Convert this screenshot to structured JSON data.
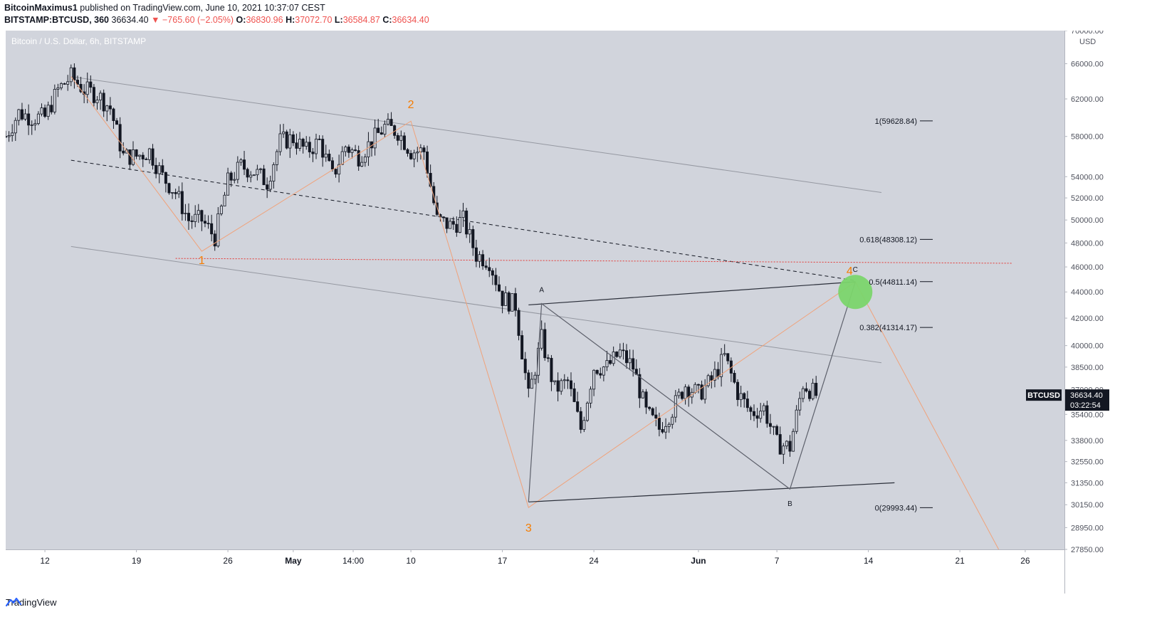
{
  "header": {
    "author": "BitcoinMaximus1",
    "published_text": " published on TradingView.com, June 10, 2021 10:37:07 CEST",
    "symbol": "BITSTAMP:BTCUSD, 360",
    "last": "36634.40",
    "change_arrow": "▼",
    "change": "−765.60 (−2.05%)",
    "o_label": "O:",
    "o": "36830.96",
    "h_label": "H:",
    "h": "37072.70",
    "l_label": "L:",
    "l": "36584.87",
    "c_label": "C:",
    "c": "36634.40"
  },
  "chart_data": {
    "type": "candlestick",
    "title": "Bitcoin / U.S. Dollar, 6h, BITSTAMP",
    "currency": "USD",
    "y_scale": "log",
    "ylim": [
      27850,
      70000
    ],
    "y_ticks": [
      {
        "value": 70000,
        "label": "70000.00"
      },
      {
        "value": 66000,
        "label": "66000.00"
      },
      {
        "value": 62000,
        "label": "62000.00"
      },
      {
        "value": 58000,
        "label": "58000.00"
      },
      {
        "value": 54000,
        "label": "54000.00"
      },
      {
        "value": 52000,
        "label": "52000.00"
      },
      {
        "value": 50000,
        "label": "50000.00"
      },
      {
        "value": 48000,
        "label": "48000.00"
      },
      {
        "value": 46000,
        "label": "46000.00"
      },
      {
        "value": 44000,
        "label": "44000.00"
      },
      {
        "value": 42000,
        "label": "42000.00"
      },
      {
        "value": 40000,
        "label": "40000.00"
      },
      {
        "value": 38500,
        "label": "38500.00"
      },
      {
        "value": 37000,
        "label": "37000.00"
      },
      {
        "value": 35400,
        "label": "35400.00"
      },
      {
        "value": 33800,
        "label": "33800.00"
      },
      {
        "value": 32550,
        "label": "32550.00"
      },
      {
        "value": 31350,
        "label": "31350.00"
      },
      {
        "value": 30150,
        "label": "30150.00"
      },
      {
        "value": 28950,
        "label": "28950.00"
      },
      {
        "value": 27850,
        "label": "27850.00"
      }
    ],
    "x_range": [
      "2021-04-09",
      "2021-06-29"
    ],
    "x_ticks": [
      {
        "date": "2021-04-12",
        "label": "12"
      },
      {
        "date": "2021-04-19",
        "label": "19"
      },
      {
        "date": "2021-04-26",
        "label": "26"
      },
      {
        "date": "2021-05-01",
        "label": "May",
        "bold": true
      },
      {
        "date": "2021-05-05T14:00",
        "label": "14:00"
      },
      {
        "date": "2021-05-10",
        "label": "10"
      },
      {
        "date": "2021-05-17",
        "label": "17"
      },
      {
        "date": "2021-05-24",
        "label": "24"
      },
      {
        "date": "2021-06-01",
        "label": "Jun",
        "bold": true
      },
      {
        "date": "2021-06-07",
        "label": "7"
      },
      {
        "date": "2021-06-14",
        "label": "14"
      },
      {
        "date": "2021-06-21",
        "label": "21"
      },
      {
        "date": "2021-06-26",
        "label": "26"
      }
    ],
    "price_path": [
      [
        "2021-04-09",
        58000
      ],
      [
        "2021-04-10",
        60500
      ],
      [
        "2021-04-11",
        60000
      ],
      [
        "2021-04-12",
        60000
      ],
      [
        "2021-04-13",
        63000
      ],
      [
        "2021-04-14",
        64500
      ],
      [
        "2021-04-15",
        63000
      ],
      [
        "2021-04-16",
        62500
      ],
      [
        "2021-04-17",
        61000
      ],
      [
        "2021-04-18",
        56000
      ],
      [
        "2021-04-19",
        56000
      ],
      [
        "2021-04-20",
        56500
      ],
      [
        "2021-04-21",
        54000
      ],
      [
        "2021-04-22",
        52500
      ],
      [
        "2021-04-23",
        50000
      ],
      [
        "2021-04-24",
        50000
      ],
      [
        "2021-04-25",
        48500
      ],
      [
        "2021-04-26",
        53500
      ],
      [
        "2021-04-27",
        55000
      ],
      [
        "2021-04-28",
        54500
      ],
      [
        "2021-04-29",
        53500
      ],
      [
        "2021-04-30",
        57500
      ],
      [
        "2021-05-01",
        57800
      ],
      [
        "2021-05-02",
        56500
      ],
      [
        "2021-05-03",
        57500
      ],
      [
        "2021-05-04",
        54000
      ],
      [
        "2021-05-05",
        57000
      ],
      [
        "2021-05-06",
        56000
      ],
      [
        "2021-05-07",
        57500
      ],
      [
        "2021-05-08",
        59000
      ],
      [
        "2021-05-09",
        58500
      ],
      [
        "2021-05-10",
        56500
      ],
      [
        "2021-05-11",
        56500
      ],
      [
        "2021-05-12",
        50000
      ],
      [
        "2021-05-13",
        49500
      ],
      [
        "2021-05-14",
        50000
      ],
      [
        "2021-05-15",
        47000
      ],
      [
        "2021-05-16",
        46500
      ],
      [
        "2021-05-17",
        43500
      ],
      [
        "2021-05-18",
        43000
      ],
      [
        "2021-05-19",
        36500
      ],
      [
        "2021-05-20",
        40500
      ],
      [
        "2021-05-21",
        37000
      ],
      [
        "2021-05-22",
        37500
      ],
      [
        "2021-05-23",
        34500
      ],
      [
        "2021-05-24",
        38500
      ],
      [
        "2021-05-25",
        38500
      ],
      [
        "2021-05-26",
        39500
      ],
      [
        "2021-05-27",
        38500
      ],
      [
        "2021-05-28",
        35500
      ],
      [
        "2021-05-29",
        34500
      ],
      [
        "2021-05-30",
        35700
      ],
      [
        "2021-05-31",
        37300
      ],
      [
        "2021-06-01",
        36700
      ],
      [
        "2021-06-02",
        37600
      ],
      [
        "2021-06-03",
        39200
      ],
      [
        "2021-06-04",
        36800
      ],
      [
        "2021-06-05",
        35500
      ],
      [
        "2021-06-06",
        35800
      ],
      [
        "2021-06-07",
        33600
      ],
      [
        "2021-06-08",
        33400
      ],
      [
        "2021-06-09",
        37400
      ],
      [
        "2021-06-10",
        36634
      ]
    ],
    "reference_prices": {
      "red_dotted_level": 46700
    },
    "fib_levels": [
      {
        "label": "1(59628.84)",
        "value": 59628.84
      },
      {
        "label": "0.618(48308.12)",
        "value": 48308.12
      },
      {
        "label": "0.5(44811.14)",
        "value": 44811.14
      },
      {
        "label": "0.382(41314.17)",
        "value": 41314.17
      },
      {
        "label": "0(29993.44)",
        "value": 29993.44
      }
    ],
    "wave_labels": [
      {
        "label": "1",
        "date": "2021-04-24",
        "value": 47300
      },
      {
        "label": "2",
        "date": "2021-05-10",
        "value": 59600
      },
      {
        "label": "3",
        "date": "2021-05-19",
        "value": 30000
      },
      {
        "label": "4",
        "date": "2021-06-13",
        "value": 44800
      }
    ],
    "abc_labels": [
      {
        "label": "A",
        "date": "2021-05-20",
        "value": 43100
      },
      {
        "label": "B",
        "date": "2021-06-08",
        "value": 31000
      },
      {
        "label": "C",
        "date": "2021-06-13",
        "value": 44800
      }
    ],
    "last_price_tag": {
      "symbol": "BTCUSD",
      "price": "36634.40",
      "countdown": "03:22:54",
      "value": 36634.4
    },
    "target_circle": {
      "date": "2021-06-13",
      "value": 44000,
      "color": "#7bd56b"
    },
    "colors": {
      "background": "#d1d4dc",
      "candle": "#131722",
      "channel": "#9598a1",
      "median": "#131722",
      "red_level": "#e53935",
      "wave": "#f0a27a",
      "triangle": "#2a2e39",
      "label_orange": "#f57c00"
    }
  },
  "footer": {
    "brand": "TradingView"
  }
}
